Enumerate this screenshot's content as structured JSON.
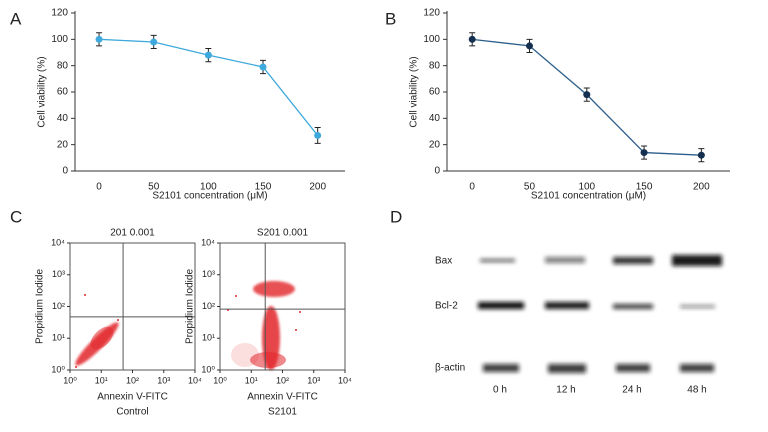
{
  "panel_labels": [
    "A",
    "B",
    "C",
    "D"
  ],
  "chart_data": [
    {
      "type": "line",
      "xlabel": "S2101 concentration (μM)",
      "ylabel": "Cell viability (%)",
      "x": [
        0,
        50,
        100,
        150,
        200
      ],
      "values": [
        100,
        98,
        88,
        79,
        27
      ],
      "errors": [
        5,
        5,
        5,
        5,
        6
      ],
      "color": "#3ea9dc",
      "marker_color": "#3ea9dc",
      "xlim": [
        -22,
        225
      ],
      "ylim": [
        0,
        120
      ],
      "xticks": [
        0,
        50,
        100,
        150,
        200
      ],
      "yticks": [
        0,
        20,
        40,
        60,
        80,
        100,
        120
      ]
    },
    {
      "type": "line",
      "xlabel": "S2101 concentration (μM)",
      "ylabel": "Cell viability (%)",
      "x": [
        0,
        50,
        100,
        150,
        200
      ],
      "values": [
        100,
        95,
        58,
        14,
        12
      ],
      "errors": [
        5,
        5,
        5,
        5,
        5
      ],
      "color": "#2d5f8c",
      "marker_color": "#15304f",
      "xlim": [
        -22,
        225
      ],
      "ylim": [
        0,
        120
      ],
      "xticks": [
        0,
        50,
        100,
        150,
        200
      ],
      "yticks": [
        0,
        20,
        40,
        60,
        80,
        100,
        120
      ]
    },
    {
      "type": "scatter",
      "title": "201 0.001",
      "xlabel": "Annexin V-FITC",
      "ylabel": "Propidium Iodide",
      "caption": "Control",
      "log": true,
      "xlim": [
        1,
        10000
      ],
      "ylim": [
        1,
        10000
      ],
      "gate_x": 50,
      "gate_y": 47,
      "xticks": [
        {
          "value": 1,
          "label": "10⁰"
        },
        {
          "value": 10,
          "label": "10¹"
        },
        {
          "value": 100,
          "label": "10²"
        },
        {
          "value": 1000,
          "label": "10³"
        },
        {
          "value": 10000,
          "label": "10⁴"
        }
      ],
      "yticks": [
        {
          "value": 1,
          "label": "10⁰"
        },
        {
          "value": 10,
          "label": "10¹"
        },
        {
          "value": 100,
          "label": "10²"
        },
        {
          "value": 1000,
          "label": "10³"
        },
        {
          "value": 10000,
          "label": "10⁴"
        }
      ]
    },
    {
      "type": "scatter",
      "title": "S201 0.001",
      "xlabel": "Annexin V-FITC",
      "ylabel": "Propidium Iodide",
      "caption": "S2101",
      "log": true,
      "xlim": [
        1,
        10000
      ],
      "ylim": [
        1,
        10000
      ],
      "gate_x": 28,
      "gate_y": 83,
      "xticks": [
        {
          "value": 1,
          "label": "10⁰"
        },
        {
          "value": 10,
          "label": "10¹"
        },
        {
          "value": 100,
          "label": "10²"
        },
        {
          "value": 1000,
          "label": "10³"
        },
        {
          "value": 10000,
          "label": "10⁴"
        }
      ],
      "yticks": [
        {
          "value": 1,
          "label": "10⁰"
        },
        {
          "value": 10,
          "label": "10¹"
        },
        {
          "value": 100,
          "label": "10²"
        },
        {
          "value": 1000,
          "label": "10³"
        },
        {
          "value": 10000,
          "label": "10⁴"
        }
      ]
    }
  ],
  "blot": {
    "rows": [
      "Bax",
      "Bcl-2",
      "β-actin"
    ],
    "lanes": [
      "0 h",
      "12 h",
      "24 h",
      "48 h"
    ]
  }
}
